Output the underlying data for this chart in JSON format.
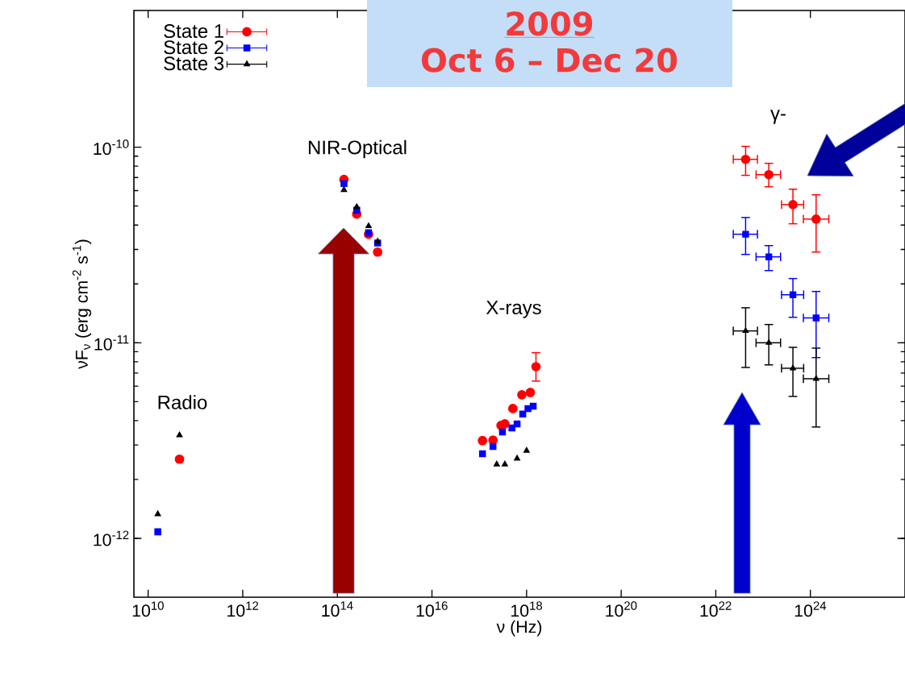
{
  "chart_data": {
    "type": "scatter",
    "xlabel": "ν (Hz)",
    "ylabel": "νF$_{ν}$ (erg cm$^{-2}$ s$^{-1}$)",
    "log": "xy",
    "xlim": [
      5000000000.0,
      1e+26
    ],
    "ylim": [
      5e-13,
      5e-10
    ],
    "xticks": [
      {
        "value": 10000000000.0,
        "label": "10$^{10}$"
      },
      {
        "value": 1000000000000.0,
        "label": "10$^{12}$"
      },
      {
        "value": 100000000000000.0,
        "label": "10$^{14}$"
      },
      {
        "value": 1e+16,
        "label": "10$^{16}$"
      },
      {
        "value": 1e+18,
        "label": "10$^{18}$"
      },
      {
        "value": 1e+20,
        "label": "10$^{20}$"
      },
      {
        "value": 1e+22,
        "label": "10$^{22}$"
      },
      {
        "value": 1e+24,
        "label": "10$^{24}$"
      }
    ],
    "yticks": [
      {
        "value": 1e-12,
        "label": "10$^{-12}$"
      },
      {
        "value": 1e-11,
        "label": "10$^{-11}$"
      },
      {
        "value": 1e-10,
        "label": "10$^{-10}$"
      }
    ],
    "legend": "top left",
    "annotations": [
      "2009",
      "Oct 6 – Dec 20",
      "Radio",
      "NIR-Optical",
      "X-rays",
      "γ-"
    ],
    "series": [
      {
        "name": "State 1",
        "color": "#ff0000",
        "marker": "circle",
        "x": [
          46000000000.0,
          138000000000000.0,
          257000000000000.0,
          457000000000000.0,
          710000000000000.0,
          1.17e+17,
          1.95e+17,
          2.88e+17,
          3.47e+17,
          5.13e+17,
          7.94e+17,
          1.2e+18,
          1.58e+18,
          4.27e+22,
          1.32e+23,
          4.27e+23,
          1.32e+24
        ],
        "values": [
          2.54e-12,
          6.84e-11,
          4.55e-11,
          3.59e-11,
          2.91e-11,
          3.16e-12,
          3.18e-12,
          3.78e-12,
          3.85e-12,
          4.61e-12,
          5.42e-12,
          5.57e-12,
          7.55e-12,
          8.67e-11,
          7.24e-11,
          5.09e-11,
          4.29e-11
        ],
        "errors": [
          null,
          null,
          null,
          null,
          null,
          null,
          null,
          null,
          null,
          null,
          null,
          null,
          [
            6.37e-12,
            8.9e-12
          ],
          [
            7.18e-11,
            1.01e-10
          ],
          [
            6.28e-11,
            8.27e-11
          ],
          [
            4.06e-11,
            6.1e-11
          ],
          [
            2.91e-11,
            5.71e-11
          ]
        ],
        "xerrors": [
          null,
          null,
          null,
          null,
          null,
          null,
          null,
          null,
          null,
          null,
          null,
          null,
          null,
          [
            2.34e+22,
            7.6e+22
          ],
          [
            7.1e+22,
            2.34e+23
          ],
          [
            2.45e+23,
            7.2e+23
          ],
          [
            7.1e+23,
            2.45e+24
          ]
        ]
      },
      {
        "name": "State 2",
        "color": "#0000ff",
        "marker": "square",
        "x": [
          16000000000.0,
          138000000000000.0,
          257000000000000.0,
          457000000000000.0,
          710000000000000.0,
          1.17e+17,
          1.95e+17,
          3.09e+17,
          4.9e+17,
          6.3e+17,
          8.3e+17,
          1.07e+18,
          1.38e+18,
          4.27e+22,
          1.32e+23,
          4.27e+23,
          1.32e+24
        ],
        "values": [
          1.08e-12,
          6.52e-11,
          4.76e-11,
          3.65e-11,
          3.24e-11,
          2.71e-12,
          2.95e-12,
          3.5e-12,
          3.67e-12,
          3.85e-12,
          4.32e-12,
          4.61e-12,
          4.74e-12,
          3.59e-11,
          2.75e-11,
          1.76e-11,
          1.34e-11
        ],
        "errors": [
          null,
          null,
          null,
          null,
          null,
          null,
          null,
          null,
          null,
          null,
          null,
          null,
          null,
          [
            2.83e-11,
            4.37e-11
          ],
          [
            2.34e-11,
            3.14e-11
          ],
          [
            1.35e-11,
            2.13e-11
          ],
          [
            8.4e-12,
            1.83e-11
          ]
        ],
        "xerrors": [
          null,
          null,
          null,
          null,
          null,
          null,
          null,
          null,
          null,
          null,
          null,
          null,
          null,
          [
            2.34e+22,
            7.6e+22
          ],
          [
            7.1e+22,
            2.34e+23
          ],
          [
            2.45e+23,
            7.2e+23
          ],
          [
            7.1e+23,
            2.45e+24
          ]
        ]
      },
      {
        "name": "State 3",
        "color": "#000000",
        "marker": "triangle",
        "x": [
          16000000000.0,
          46000000000.0,
          138000000000000.0,
          257000000000000.0,
          457000000000000.0,
          710000000000000.0,
          2.34e+17,
          3.47e+17,
          6.3e+17,
          1e+18,
          4.27e+22,
          1.32e+23,
          4.27e+23,
          1.32e+24
        ],
        "values": [
          1.33e-12,
          3.37e-12,
          6.05e-11,
          4.95e-11,
          3.95e-11,
          3.3e-11,
          2.39e-12,
          2.39e-12,
          2.56e-12,
          2.81e-12,
          1.15e-11,
          1e-11,
          7.41e-12,
          6.55e-12
        ],
        "errors": [
          null,
          null,
          null,
          null,
          null,
          null,
          null,
          null,
          null,
          null,
          [
            7.48e-12,
            1.51e-11
          ],
          [
            7.71e-12,
            1.24e-11
          ],
          [
            5.32e-12,
            9.48e-12
          ],
          [
            3.71e-12,
            9.39e-12
          ]
        ],
        "xerrors": [
          null,
          null,
          null,
          null,
          null,
          null,
          null,
          null,
          null,
          null,
          [
            2.34e+22,
            7.6e+22
          ],
          [
            7.1e+22,
            2.34e+23
          ],
          [
            2.45e+23,
            7.2e+23
          ],
          [
            7.1e+23,
            2.45e+24
          ]
        ]
      }
    ]
  }
}
